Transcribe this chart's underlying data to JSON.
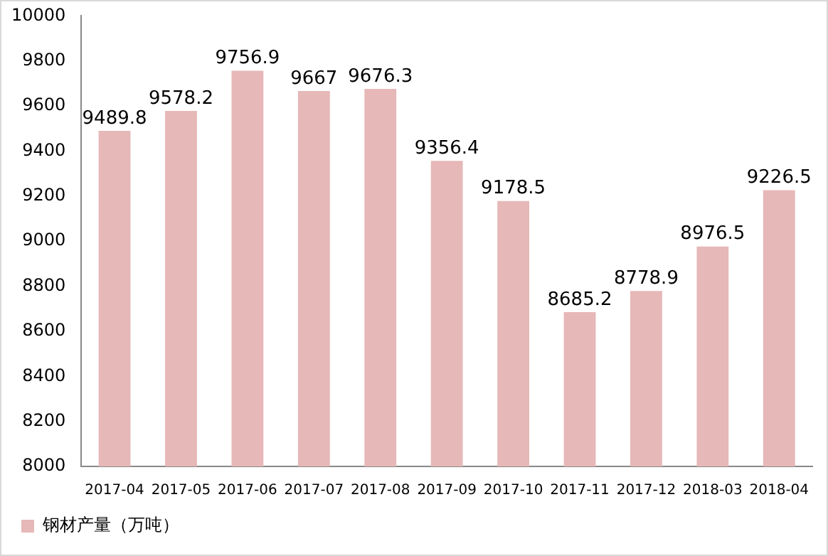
{
  "chart_data": {
    "type": "bar",
    "categories": [
      "2017-04",
      "2017-05",
      "2017-06",
      "2017-07",
      "2017-08",
      "2017-09",
      "2017-10",
      "2017-11",
      "2017-12",
      "2018-03",
      "2018-04"
    ],
    "series": [
      {
        "name": "钢材产量（万吨）",
        "color": "#e6b8b7",
        "values": [
          9489.8,
          9578.2,
          9756.9,
          9667,
          9676.3,
          9356.4,
          9178.5,
          8685.2,
          8778.9,
          8976.5,
          9226.5
        ]
      }
    ],
    "ylim": [
      8000,
      10000
    ],
    "yticks": [
      8000,
      8200,
      8400,
      8600,
      8800,
      9000,
      9200,
      9400,
      9600,
      9800,
      10000
    ],
    "grid": false,
    "legend": "bottom left",
    "data_labels": true
  }
}
